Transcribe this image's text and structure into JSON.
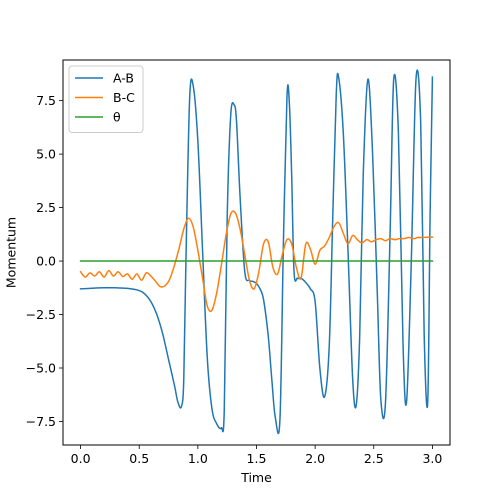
{
  "chart_data": {
    "type": "line",
    "xlabel": "Time",
    "ylabel": "Momentum",
    "xlim": [
      -0.15,
      3.15
    ],
    "ylim": [
      -8.6,
      9.4
    ],
    "x_ticks": [
      0.0,
      0.5,
      1.0,
      1.5,
      2.0,
      2.5,
      3.0
    ],
    "x_tick_labels": [
      "0.0",
      "0.5",
      "1.0",
      "1.5",
      "2.0",
      "2.5",
      "3.0"
    ],
    "y_ticks": [
      -7.5,
      -5.0,
      -2.5,
      0.0,
      2.5,
      5.0,
      7.5
    ],
    "y_tick_labels": [
      "−7.5",
      "−5.0",
      "−2.5",
      "0.0",
      "2.5",
      "5.0",
      "7.5"
    ],
    "grid": false,
    "legend_position": "top-left",
    "series": [
      {
        "name": "A-B",
        "color": "#1f77b4",
        "x": [
          0.0,
          0.1,
          0.2,
          0.3,
          0.4,
          0.5,
          0.55,
          0.6,
          0.65,
          0.7,
          0.75,
          0.8,
          0.83,
          0.86,
          0.88,
          0.9,
          0.93,
          0.96,
          1.0,
          1.04,
          1.08,
          1.12,
          1.16,
          1.2,
          1.225,
          1.25,
          1.28,
          1.31,
          1.33,
          1.36,
          1.4,
          1.44,
          1.47,
          1.5,
          1.53,
          1.56,
          1.6,
          1.63,
          1.66,
          1.7,
          1.73,
          1.76,
          1.78,
          1.8,
          1.82,
          1.85,
          1.88,
          1.92,
          1.96,
          2.0,
          2.04,
          2.08,
          2.12,
          2.15,
          2.18,
          2.2,
          2.24,
          2.28,
          2.32,
          2.35,
          2.38,
          2.41,
          2.45,
          2.49,
          2.53,
          2.56,
          2.6,
          2.64,
          2.67,
          2.71,
          2.75,
          2.78,
          2.82,
          2.86,
          2.9,
          2.93,
          2.96,
          2.98,
          3.0
        ],
        "y": [
          -1.3,
          -1.27,
          -1.25,
          -1.25,
          -1.28,
          -1.38,
          -1.55,
          -1.9,
          -2.5,
          -3.4,
          -4.6,
          -5.8,
          -6.6,
          -6.8,
          -5.5,
          0.5,
          7.6,
          8.2,
          5.6,
          0.5,
          -4.5,
          -6.9,
          -7.6,
          -7.8,
          -7.0,
          2.0,
          6.8,
          7.3,
          6.5,
          3.0,
          -0.5,
          -0.9,
          -0.95,
          -1.05,
          -1.3,
          -1.8,
          -3.5,
          -5.5,
          -7.3,
          -7.4,
          1.0,
          7.7,
          7.4,
          4.0,
          -0.5,
          -0.8,
          -0.8,
          -1.0,
          -1.3,
          -1.9,
          -5.0,
          -6.35,
          -4.0,
          2.0,
          7.8,
          8.6,
          6.0,
          0.5,
          -5.5,
          -6.75,
          -3.5,
          4.0,
          8.5,
          5.0,
          -1.5,
          -6.45,
          -6.6,
          1.5,
          8.5,
          6.0,
          -4.0,
          -6.55,
          0.0,
          8.5,
          6.5,
          -3.5,
          -6.6,
          2.0,
          8.6
        ]
      },
      {
        "name": "B-C",
        "color": "#ff7f0e",
        "x": [
          0.0,
          0.04,
          0.08,
          0.12,
          0.16,
          0.2,
          0.24,
          0.28,
          0.32,
          0.36,
          0.4,
          0.44,
          0.48,
          0.52,
          0.56,
          0.6,
          0.64,
          0.68,
          0.72,
          0.76,
          0.8,
          0.84,
          0.88,
          0.92,
          0.96,
          1.0,
          1.04,
          1.08,
          1.12,
          1.16,
          1.2,
          1.24,
          1.28,
          1.32,
          1.36,
          1.4,
          1.44,
          1.48,
          1.52,
          1.56,
          1.6,
          1.64,
          1.68,
          1.72,
          1.76,
          1.8,
          1.84,
          1.88,
          1.92,
          1.96,
          2.0,
          2.04,
          2.08,
          2.12,
          2.16,
          2.2,
          2.24,
          2.28,
          2.32,
          2.36,
          2.4,
          2.44,
          2.48,
          2.52,
          2.56,
          2.6,
          2.64,
          2.68,
          2.72,
          2.76,
          2.8,
          2.84,
          2.88,
          2.92,
          2.96,
          3.0
        ],
        "y": [
          -0.5,
          -0.75,
          -0.55,
          -0.7,
          -0.5,
          -0.75,
          -0.45,
          -0.7,
          -0.5,
          -0.72,
          -0.6,
          -0.85,
          -0.6,
          -0.9,
          -0.55,
          -0.7,
          -0.95,
          -1.2,
          -1.15,
          -0.85,
          -0.2,
          0.6,
          1.5,
          2.0,
          1.6,
          0.5,
          -0.8,
          -2.1,
          -2.3,
          -1.5,
          -0.2,
          1.2,
          2.2,
          2.25,
          1.5,
          0.3,
          -0.9,
          -1.3,
          -0.5,
          0.8,
          0.9,
          -0.3,
          -0.6,
          0.3,
          1.0,
          0.8,
          -0.3,
          -0.8,
          0.8,
          0.55,
          -0.15,
          0.5,
          0.7,
          1.1,
          1.6,
          1.8,
          1.3,
          0.8,
          1.2,
          1.0,
          0.85,
          1.0,
          0.9,
          1.0,
          1.05,
          0.95,
          1.05,
          1.0,
          1.05,
          1.05,
          1.1,
          1.05,
          1.1,
          1.1,
          1.12,
          1.12
        ]
      },
      {
        "name": "θ",
        "color": "#2ca02c",
        "x": [
          0.0,
          3.0
        ],
        "y": [
          0.0,
          0.0
        ]
      }
    ]
  }
}
